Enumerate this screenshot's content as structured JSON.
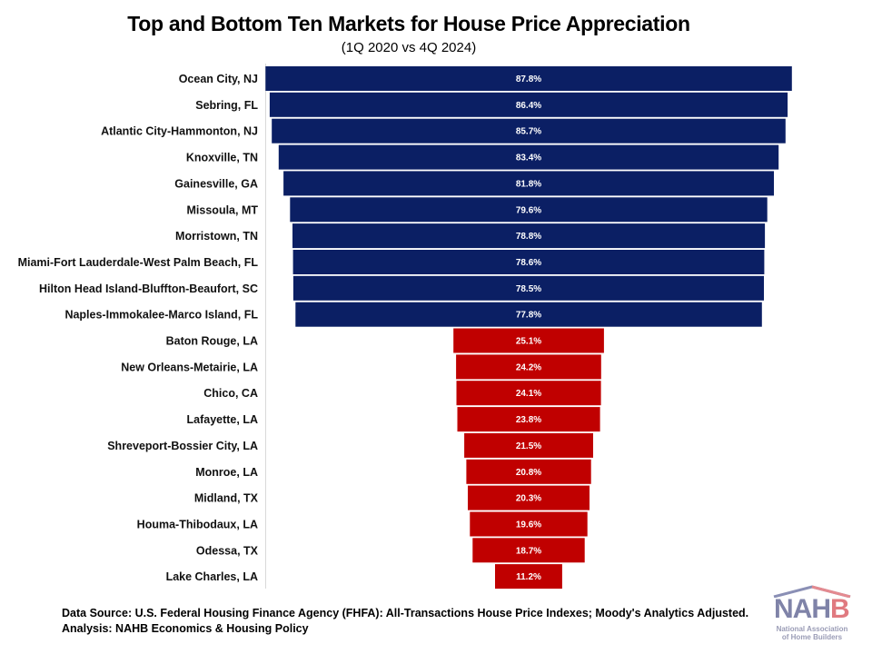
{
  "header": {
    "title": "Top and Bottom Ten Markets for House Price Appreciation",
    "subtitle": "(1Q 2020 vs 4Q 2024)"
  },
  "chart_data": {
    "type": "bar",
    "orientation": "horizontal-centered-funnel",
    "title": "Top and Bottom Ten Markets for House Price Appreciation",
    "subtitle": "(1Q 2020 vs 4Q 2024)",
    "xlabel": "",
    "ylabel": "",
    "unit": "%",
    "grid": false,
    "legend": "none",
    "colors": {
      "top": "#0b1f64",
      "bottom": "#c00000",
      "value_label": "#ffffff"
    },
    "categories": [
      "Ocean City, NJ",
      "Sebring, FL",
      "Atlantic City-Hammonton, NJ",
      "Knoxville, TN",
      "Gainesville, GA",
      "Missoula, MT",
      "Morristown, TN",
      "Miami-Fort Lauderdale-West Palm Beach, FL",
      "Hilton Head Island-Bluffton-Beaufort, SC",
      "Naples-Immokalee-Marco Island, FL",
      "Baton Rouge, LA",
      "New Orleans-Metairie, LA",
      "Chico, CA",
      "Lafayette, LA",
      "Shreveport-Bossier City, LA",
      "Monroe, LA",
      "Midland, TX",
      "Houma-Thibodaux, LA",
      "Odessa, TX",
      "Lake Charles, LA"
    ],
    "values": [
      87.8,
      86.4,
      85.7,
      83.4,
      81.8,
      79.6,
      78.8,
      78.6,
      78.5,
      77.8,
      25.1,
      24.2,
      24.1,
      23.8,
      21.5,
      20.8,
      20.3,
      19.6,
      18.7,
      11.2
    ],
    "value_labels": [
      "87.8%",
      "86.4%",
      "85.7%",
      "83.4%",
      "81.8%",
      "79.6%",
      "78.8%",
      "78.6%",
      "78.5%",
      "77.8%",
      "25.1%",
      "24.2%",
      "24.1%",
      "23.8%",
      "21.5%",
      "20.8%",
      "20.3%",
      "19.6%",
      "18.7%",
      "11.2%"
    ],
    "groups": [
      "top",
      "top",
      "top",
      "top",
      "top",
      "top",
      "top",
      "top",
      "top",
      "top",
      "bottom",
      "bottom",
      "bottom",
      "bottom",
      "bottom",
      "bottom",
      "bottom",
      "bottom",
      "bottom",
      "bottom"
    ]
  },
  "footer": {
    "source": "Data Source: U.S. Federal Housing Finance Agency (FHFA): All-Transactions House Price Indexes; Moody's Analytics Adjusted.",
    "analysis": "Analysis: NAHB Economics & Housing Policy"
  },
  "logo": {
    "acronym_main": "NAH",
    "acronym_last": "B",
    "org_line1": "National Association",
    "org_line2": "of Home Builders"
  }
}
